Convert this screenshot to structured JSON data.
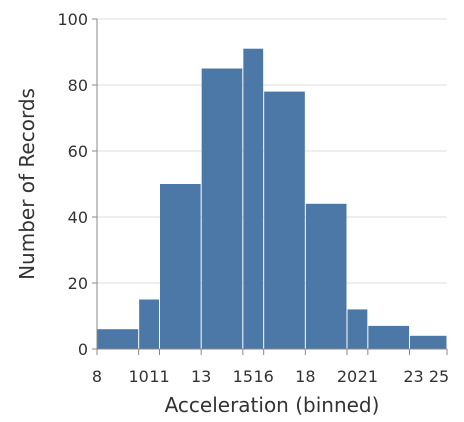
{
  "chart_data": {
    "type": "bar",
    "xlabel": "Acceleration (binned)",
    "ylabel": "Number of Records",
    "ylim": [
      0,
      100
    ],
    "grid": true,
    "y_ticks": [
      "0",
      "20",
      "40",
      "60",
      "80",
      "100"
    ],
    "x_tick_labels": [
      "8",
      "10",
      "11",
      "13",
      "15",
      "16",
      "18",
      "20",
      "21",
      "23",
      "25"
    ],
    "bin_edges": [
      8,
      10,
      11,
      13,
      15,
      16,
      18,
      20,
      21,
      23,
      24.8
    ],
    "values": [
      6,
      15,
      50,
      85,
      91,
      78,
      44,
      12,
      7,
      4
    ],
    "bar_color": "#4c78a8",
    "grid_color": "#dddddd",
    "axis_color": "#888888"
  }
}
